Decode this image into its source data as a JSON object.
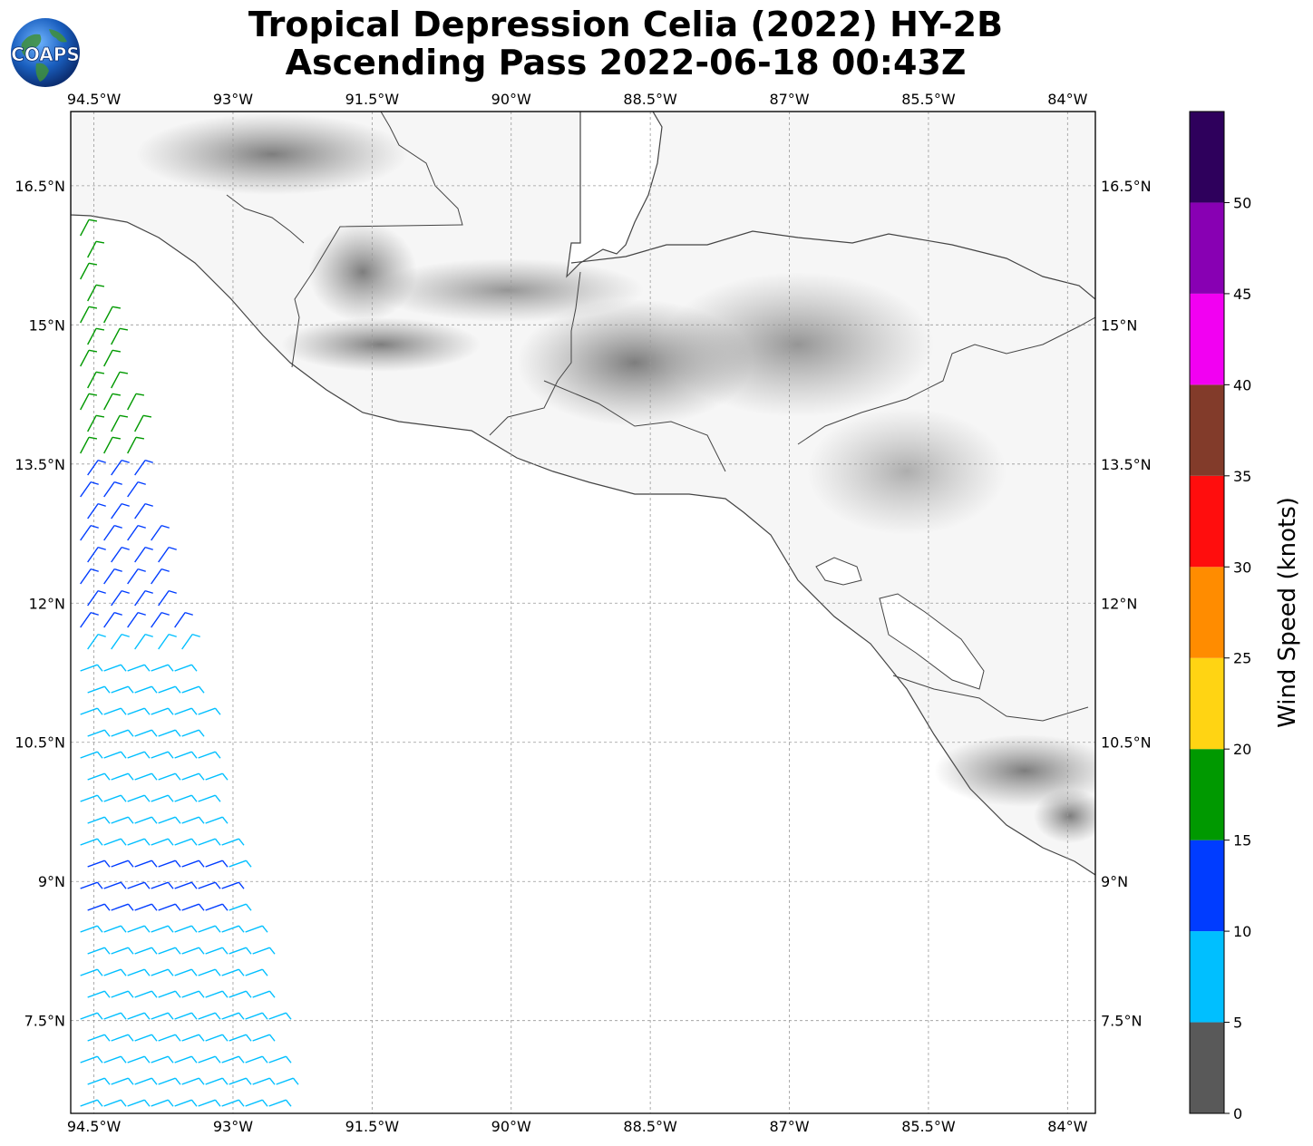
{
  "title": {
    "line1": "Tropical Depression Celia (2022) HY-2B",
    "line2": "Ascending Pass 2022-06-18 00:43Z"
  },
  "logo": {
    "text": "COAPS"
  },
  "map": {
    "lon_ticks": [
      "94.5°W",
      "93°W",
      "91.5°W",
      "90°W",
      "88.5°W",
      "87°W",
      "85.5°W",
      "84°W"
    ],
    "lat_ticks": [
      "16.5°N",
      "15°N",
      "13.5°N",
      "12°N",
      "10.5°N",
      "9°N",
      "7.5°N"
    ],
    "lon_values": [
      -94.5,
      -93,
      -91.5,
      -90,
      -88.5,
      -87,
      -85.5,
      -84
    ],
    "lat_values": [
      16.5,
      15,
      13.5,
      12,
      10.5,
      9,
      7.5
    ],
    "extent": {
      "lon_min": -94.75,
      "lon_max": -83.7,
      "lat_min": 6.5,
      "lat_max": 17.3
    }
  },
  "colorbar": {
    "title": "Wind Speed (knots)",
    "ticks": [
      "0",
      "5",
      "10",
      "15",
      "20",
      "25",
      "30",
      "35",
      "40",
      "45",
      "50"
    ],
    "bins": [
      {
        "min": 0,
        "max": 5,
        "color": "#595959"
      },
      {
        "min": 5,
        "max": 10,
        "color": "#00bfff"
      },
      {
        "min": 10,
        "max": 15,
        "color": "#003cff"
      },
      {
        "min": 15,
        "max": 20,
        "color": "#009900"
      },
      {
        "min": 20,
        "max": 25,
        "color": "#ffd413"
      },
      {
        "min": 25,
        "max": 30,
        "color": "#ff8c00"
      },
      {
        "min": 30,
        "max": 35,
        "color": "#ff0d0d"
      },
      {
        "min": 35,
        "max": 40,
        "color": "#823b2a"
      },
      {
        "min": 40,
        "max": 45,
        "color": "#f200f2"
      },
      {
        "min": 45,
        "max": 50,
        "color": "#8800b3"
      },
      {
        "min": 50,
        "max": 55,
        "color": "#2e005c"
      }
    ]
  }
}
